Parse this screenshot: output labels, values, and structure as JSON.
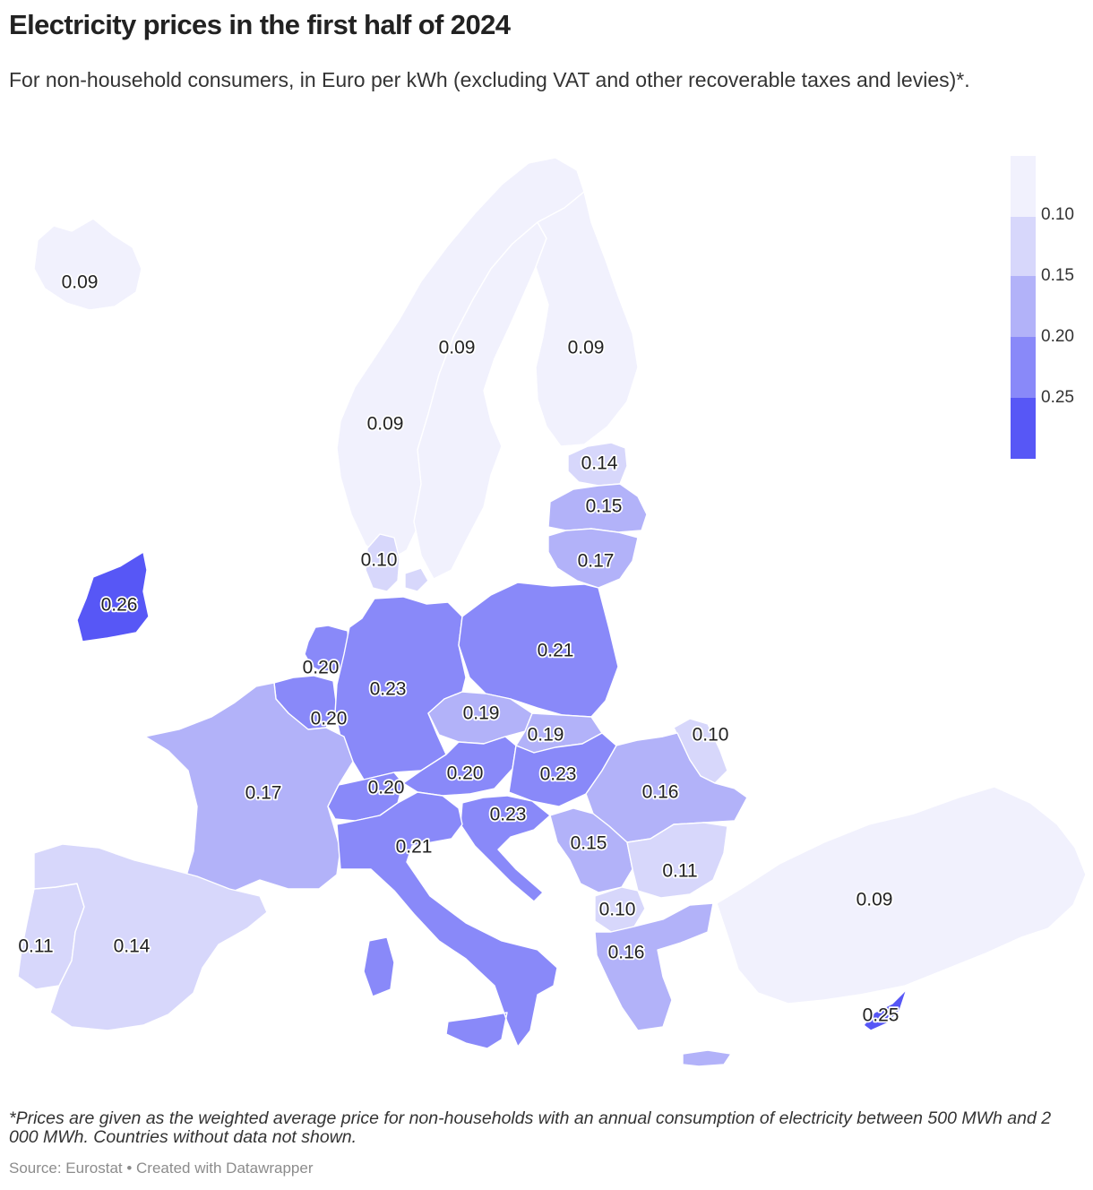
{
  "title": "Electricity prices in the first half of 2024",
  "subtitle": "For non-household consumers, in Euro per kWh (excluding VAT and other recoverable taxes and levies)*.",
  "legend": {
    "ticks": [
      "0.10",
      "0.15",
      "0.20",
      "0.25"
    ],
    "colors": [
      "#f1f1fd",
      "#d7d7fb",
      "#b2b2f9",
      "#8989f9",
      "#5757f6"
    ]
  },
  "countries": [
    {
      "id": "iceland",
      "value": "0.09"
    },
    {
      "id": "norway",
      "value": "0.09"
    },
    {
      "id": "sweden",
      "value": "0.09"
    },
    {
      "id": "finland",
      "value": "0.09"
    },
    {
      "id": "estonia",
      "value": "0.14"
    },
    {
      "id": "latvia",
      "value": "0.15"
    },
    {
      "id": "lithuania",
      "value": "0.17"
    },
    {
      "id": "denmark",
      "value": "0.10"
    },
    {
      "id": "ireland",
      "value": "0.26"
    },
    {
      "id": "netherlands",
      "value": "0.20"
    },
    {
      "id": "belgium",
      "value": "0.20"
    },
    {
      "id": "germany",
      "value": "0.23"
    },
    {
      "id": "poland",
      "value": "0.21"
    },
    {
      "id": "czechia",
      "value": "0.19"
    },
    {
      "id": "slovakia",
      "value": "0.19"
    },
    {
      "id": "austria",
      "value": "0.20"
    },
    {
      "id": "hungary",
      "value": "0.23"
    },
    {
      "id": "moldova",
      "value": "0.10"
    },
    {
      "id": "romania",
      "value": "0.16"
    },
    {
      "id": "france",
      "value": "0.17"
    },
    {
      "id": "switzerland",
      "value": "0.20"
    },
    {
      "id": "croatia",
      "value": "0.23"
    },
    {
      "id": "italy",
      "value": "0.21"
    },
    {
      "id": "serbia",
      "value": "0.15"
    },
    {
      "id": "bulgaria",
      "value": "0.11"
    },
    {
      "id": "north-macedonia",
      "value": "0.10"
    },
    {
      "id": "greece",
      "value": "0.16"
    },
    {
      "id": "turkey",
      "value": "0.09"
    },
    {
      "id": "portugal",
      "value": "0.11"
    },
    {
      "id": "spain",
      "value": "0.14"
    },
    {
      "id": "cyprus",
      "value": "0.25"
    }
  ],
  "footnote": "*Prices are given as the weighted average price for non-households with an annual consumption of electricity between 500 MWh and 2 000 MWh. Countries without data not shown.",
  "source": "Source: Eurostat • Created with Datawrapper"
}
